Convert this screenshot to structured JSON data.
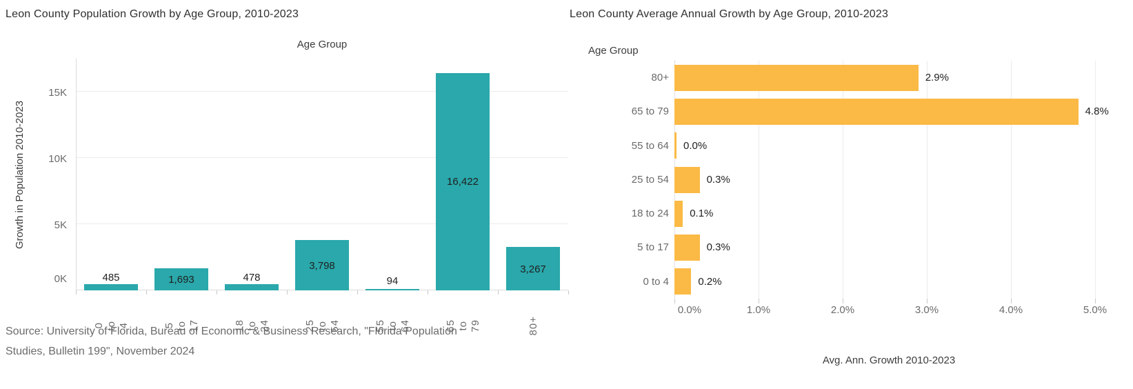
{
  "chart_data": [
    {
      "type": "bar",
      "title": "Leon County Population Growth by Age Group, 2010-2023",
      "xlabel": "Age Group",
      "ylabel": "Growth in Population 2010-2023",
      "categories": [
        "0 to 4",
        "5 to 17",
        "18 to 24",
        "25 to 54",
        "55 to 64",
        "65 to 79",
        "80+"
      ],
      "values": [
        485,
        1693,
        478,
        3798,
        94,
        16422,
        3267
      ],
      "value_labels": [
        "485",
        "1,693",
        "478",
        "3,798",
        "94",
        "16,422",
        "3,267"
      ],
      "y_ticks": [
        {
          "label": "0K",
          "value": 0
        },
        {
          "label": "5K",
          "value": 5000
        },
        {
          "label": "10K",
          "value": 10000
        },
        {
          "label": "15K",
          "value": 15000
        }
      ],
      "ylim": [
        0,
        17500
      ],
      "grid": "horizontal",
      "legend": "none",
      "bar_color": "#2AA8AB"
    },
    {
      "type": "bar",
      "orientation": "horizontal",
      "title": "Leon County Average Annual Growth by Age Group, 2010-2023",
      "xlabel": "Avg. Ann. Growth 2010-2023",
      "ylabel": "Age Group",
      "categories": [
        "80+",
        "65 to 79",
        "55 to 64",
        "25 to 54",
        "18 to 24",
        "5 to 17",
        "0 to 4"
      ],
      "values": [
        2.9,
        4.8,
        0.0,
        0.3,
        0.1,
        0.3,
        0.2
      ],
      "value_labels": [
        "2.9%",
        "4.8%",
        "0.0%",
        "0.3%",
        "0.1%",
        "0.3%",
        "0.2%"
      ],
      "x_ticks": [
        {
          "label": "0.0%",
          "value": 0
        },
        {
          "label": "1.0%",
          "value": 1
        },
        {
          "label": "2.0%",
          "value": 2
        },
        {
          "label": "3.0%",
          "value": 3
        },
        {
          "label": "4.0%",
          "value": 4
        },
        {
          "label": "5.0%",
          "value": 5
        }
      ],
      "xlim": [
        0,
        5.2
      ],
      "grid": "vertical",
      "legend": "none",
      "bar_color": "#FBBA45"
    }
  ],
  "source": {
    "line1": "Source: University of Florida, Bureau of Economic & Business Research, \"Florida Population",
    "line2": "Studies, Bulletin 199\", November 2024"
  },
  "colors": {
    "teal": "#2AA8AB",
    "orange": "#FBBA45",
    "title_text": "#2E2E2E",
    "tick_text": "#6A6A6A",
    "gridline": "#EBEBEB",
    "source_text": "#6B6B6B"
  }
}
